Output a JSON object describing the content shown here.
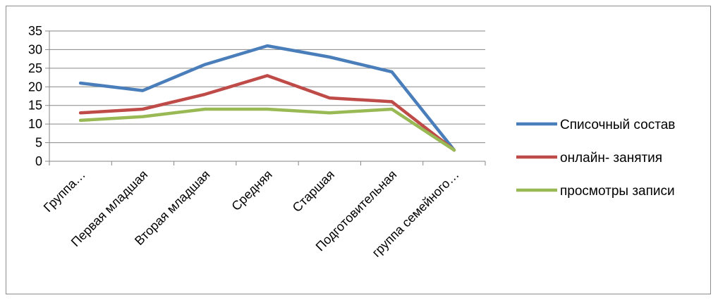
{
  "chart_data": {
    "type": "line",
    "categories": [
      "Группа…",
      "Первая младшая",
      "Вторая младшая",
      "Средняя",
      "Старшая",
      "Подготовительная",
      "группа семейного…"
    ],
    "series": [
      {
        "name": "Списочный состав",
        "values": [
          21,
          19,
          26,
          31,
          28,
          24,
          3
        ],
        "color": "#4a7ebb"
      },
      {
        "name": "онлайн- занятия",
        "values": [
          13,
          14,
          18,
          23,
          17,
          16,
          3
        ],
        "color": "#be4b48"
      },
      {
        "name": "просмотры записи",
        "values": [
          11,
          12,
          14,
          14,
          13,
          14,
          3
        ],
        "color": "#98b954"
      }
    ],
    "ylim": [
      0,
      35
    ],
    "yticks": [
      0,
      5,
      10,
      15,
      20,
      25,
      30,
      35
    ],
    "grid": true,
    "legend_position": "right",
    "gridline_color": "#868686"
  }
}
